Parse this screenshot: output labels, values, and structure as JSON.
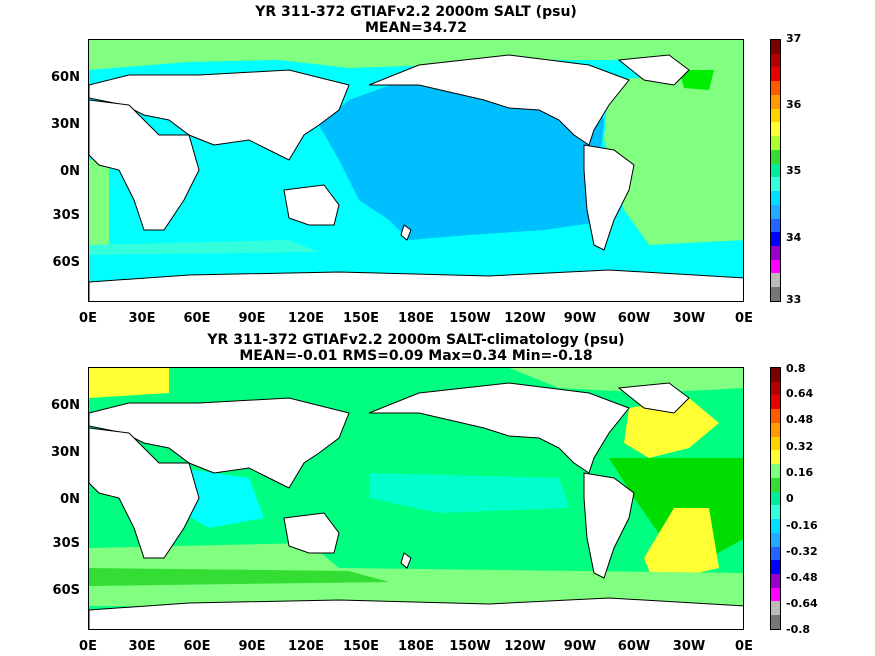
{
  "panels": [
    {
      "title_line1": "YR 311-372 GTIAFv2.2 2000m SALT (psu)",
      "title_line2": "MEAN=34.72",
      "lat_labels": [
        "60N",
        "30N",
        "0N",
        "30S",
        "60S"
      ],
      "lon_labels": [
        "0E",
        "30E",
        "60E",
        "90E",
        "120E",
        "150E",
        "180E",
        "150W",
        "120W",
        "90W",
        "60W",
        "30W",
        "0E"
      ],
      "colorbar_labels": [
        "37",
        "36",
        "35",
        "34",
        "33"
      ],
      "colorbar_colors": [
        "#7a0000",
        "#b40000",
        "#e60000",
        "#ff5a00",
        "#ff9a00",
        "#ffd200",
        "#ffff33",
        "#aaff33",
        "#33dd33",
        "#00ee99",
        "#33ffdd",
        "#00ddff",
        "#22aaff",
        "#2266ff",
        "#0000ff",
        "#9900cc",
        "#ff00ff",
        "#bbbbbb",
        "#777777"
      ],
      "colors": {
        "deep": "#00bfff",
        "main": "#00ffff",
        "atlantic": "#80ff80",
        "high": "#00ee00"
      }
    },
    {
      "title_line1": "YR 311-372 GTIAFv2.2 2000m SALT-climatology (psu)",
      "title_line2": "MEAN=-0.01   RMS=0.09   Max=0.34   Min=-0.18",
      "lat_labels": [
        "60N",
        "30N",
        "0N",
        "30S",
        "60S"
      ],
      "lon_labels": [
        "0E",
        "30E",
        "60E",
        "90E",
        "120E",
        "150E",
        "180E",
        "150W",
        "120W",
        "90W",
        "60W",
        "30W",
        "0E"
      ],
      "colorbar_labels": [
        "0.8",
        "0.64",
        "0.48",
        "0.32",
        "0.16",
        "0",
        "-0.16",
        "-0.32",
        "-0.48",
        "-0.64",
        "-0.8"
      ],
      "colorbar_colors": [
        "#7a0000",
        "#b40000",
        "#e60000",
        "#ff5a00",
        "#ff9a00",
        "#ffd200",
        "#ffff33",
        "#80ff80",
        "#33dd33",
        "#00ee99",
        "#33ffdd",
        "#00ddff",
        "#22aaff",
        "#2266ff",
        "#0000ff",
        "#9900cc",
        "#ff00ff",
        "#bbbbbb",
        "#777777"
      ],
      "colors": {
        "green": "#00ff80",
        "yellow": "#ffff33",
        "lightgreen": "#80ff80",
        "green2": "#00dd00",
        "cyan": "#00ffff"
      }
    }
  ]
}
